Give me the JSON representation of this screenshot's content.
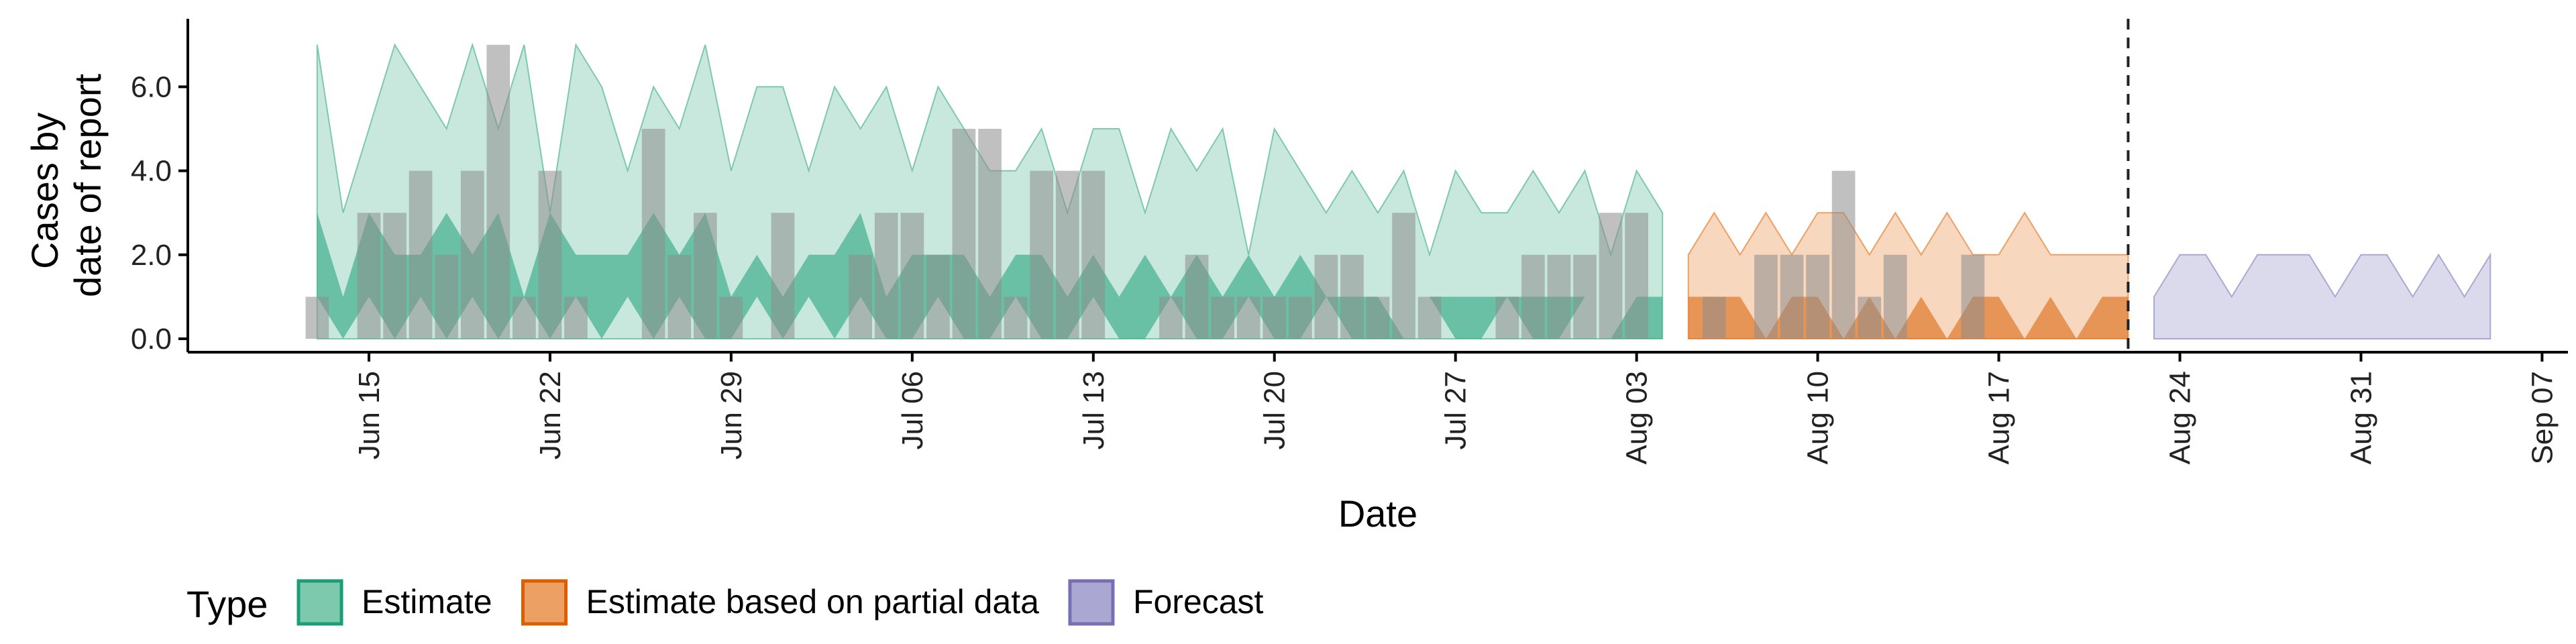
{
  "chart_data": {
    "type": "area",
    "xlabel": "Date",
    "ylabel_lines": [
      "Cases by",
      "date of report"
    ],
    "y_ticks": [
      "0.0",
      "2.0",
      "4.0",
      "6.0"
    ],
    "ylim": [
      0,
      7.3
    ],
    "x_range": [
      "2020-06-08",
      "2020-09-08"
    ],
    "x_ticks": [
      {
        "date": "2020-06-15",
        "label": "Jun 15"
      },
      {
        "date": "2020-06-22",
        "label": "Jun 22"
      },
      {
        "date": "2020-06-29",
        "label": "Jun 29"
      },
      {
        "date": "2020-07-06",
        "label": "Jul 06"
      },
      {
        "date": "2020-07-13",
        "label": "Jul 13"
      },
      {
        "date": "2020-07-20",
        "label": "Jul 20"
      },
      {
        "date": "2020-07-27",
        "label": "Jul 27"
      },
      {
        "date": "2020-08-03",
        "label": "Aug 03"
      },
      {
        "date": "2020-08-10",
        "label": "Aug 10"
      },
      {
        "date": "2020-08-17",
        "label": "Aug 17"
      },
      {
        "date": "2020-08-24",
        "label": "Aug 24"
      },
      {
        "date": "2020-08-31",
        "label": "Aug 31"
      },
      {
        "date": "2020-09-07",
        "label": "Sep 07"
      }
    ],
    "forecast_boundary": "2020-08-22",
    "legend": {
      "title": "Type",
      "position": "bottom",
      "entries": [
        {
          "label": "Estimate",
          "fill": "#7cc9ad",
          "stroke": "#1b9e77"
        },
        {
          "label": "Estimate based on partial data",
          "fill": "#eda064",
          "stroke": "#d95f02"
        },
        {
          "label": "Forecast",
          "fill": "#aaa8d2",
          "stroke": "#7570b3"
        }
      ]
    },
    "series": [
      {
        "type": "Estimate",
        "start": "2020-06-13",
        "outer_upper": [
          7,
          3,
          5,
          7,
          6,
          5,
          7,
          5,
          7,
          3,
          7,
          6,
          4,
          6,
          5,
          7,
          4,
          6,
          6,
          4,
          6,
          5,
          6,
          4,
          6,
          5,
          4,
          4,
          5,
          3,
          5,
          5,
          3,
          5,
          4,
          5,
          2,
          5,
          4,
          3,
          4,
          3,
          4,
          2,
          4,
          3,
          3,
          4,
          3,
          4,
          2,
          4,
          3
        ],
        "outer_lower": [
          0,
          0,
          0,
          0,
          0,
          0,
          0,
          0,
          0,
          0,
          0,
          0,
          0,
          0,
          0,
          0,
          0,
          0,
          0,
          0,
          0,
          0,
          0,
          0,
          0,
          0,
          0,
          0,
          0,
          0,
          0,
          0,
          0,
          0,
          0,
          0,
          0,
          0,
          0,
          0,
          0,
          0,
          0,
          0,
          0,
          0,
          0,
          0,
          0,
          0,
          0,
          0,
          0
        ],
        "inner_upper": [
          3,
          1,
          3,
          2,
          2,
          3,
          2,
          3,
          1,
          3,
          2,
          2,
          2,
          3,
          2,
          3,
          1,
          2,
          1,
          2,
          2,
          3,
          1,
          2,
          2,
          2,
          1,
          2,
          2,
          1,
          2,
          1,
          2,
          1,
          2,
          1,
          2,
          1,
          2,
          1,
          1,
          1,
          0,
          1,
          1,
          1,
          1,
          1,
          1,
          1,
          0,
          1,
          1
        ],
        "inner_lower": [
          1,
          0,
          1,
          0,
          1,
          0,
          1,
          0,
          1,
          0,
          1,
          0,
          1,
          0,
          1,
          0,
          0,
          1,
          0,
          1,
          0,
          1,
          0,
          0,
          1,
          0,
          0,
          1,
          0,
          0,
          1,
          0,
          0,
          1,
          0,
          0,
          1,
          0,
          0,
          1,
          0,
          0,
          0,
          1,
          0,
          0,
          1,
          0,
          0,
          1,
          0,
          0,
          0
        ]
      },
      {
        "type": "Estimate based on partial data",
        "start": "2020-08-05",
        "outer_upper": [
          2,
          3,
          2,
          3,
          2,
          3,
          3,
          2,
          3,
          2,
          3,
          2,
          2,
          3,
          2,
          2,
          2,
          2
        ],
        "outer_lower": [
          0,
          0,
          0,
          0,
          0,
          0,
          0,
          0,
          0,
          0,
          0,
          0,
          0,
          0,
          0,
          0,
          0,
          0
        ],
        "inner_upper": [
          1,
          1,
          1,
          0,
          1,
          1,
          0,
          1,
          0,
          1,
          0,
          1,
          1,
          0,
          1,
          0,
          1,
          1
        ],
        "inner_lower": [
          0,
          0,
          0,
          0,
          0,
          0,
          0,
          0,
          0,
          0,
          0,
          0,
          0,
          0,
          0,
          0,
          0,
          0
        ]
      },
      {
        "type": "Forecast",
        "start": "2020-08-23",
        "outer_upper": [
          1,
          2,
          2,
          1,
          2,
          2,
          2,
          1,
          2,
          2,
          1,
          2,
          1,
          2
        ],
        "outer_lower": [
          0,
          0,
          0,
          0,
          0,
          0,
          0,
          0,
          0,
          0,
          0,
          0,
          0,
          0
        ]
      }
    ],
    "reported_cases": {
      "start": "2020-06-13",
      "values": [
        1,
        0,
        3,
        3,
        4,
        2,
        4,
        7,
        1,
        4,
        1,
        0,
        0,
        5,
        2,
        3,
        1,
        0,
        3,
        0,
        0,
        2,
        3,
        3,
        2,
        5,
        5,
        1,
        4,
        4,
        4,
        0,
        0,
        1,
        2,
        1,
        1,
        1,
        1,
        2,
        2,
        1,
        3,
        1,
        0,
        0,
        1,
        2,
        2,
        2,
        3,
        3,
        0,
        0,
        1,
        0,
        2,
        2,
        2,
        4,
        1,
        2,
        0,
        0,
        2,
        0,
        0,
        0,
        0
      ]
    }
  }
}
